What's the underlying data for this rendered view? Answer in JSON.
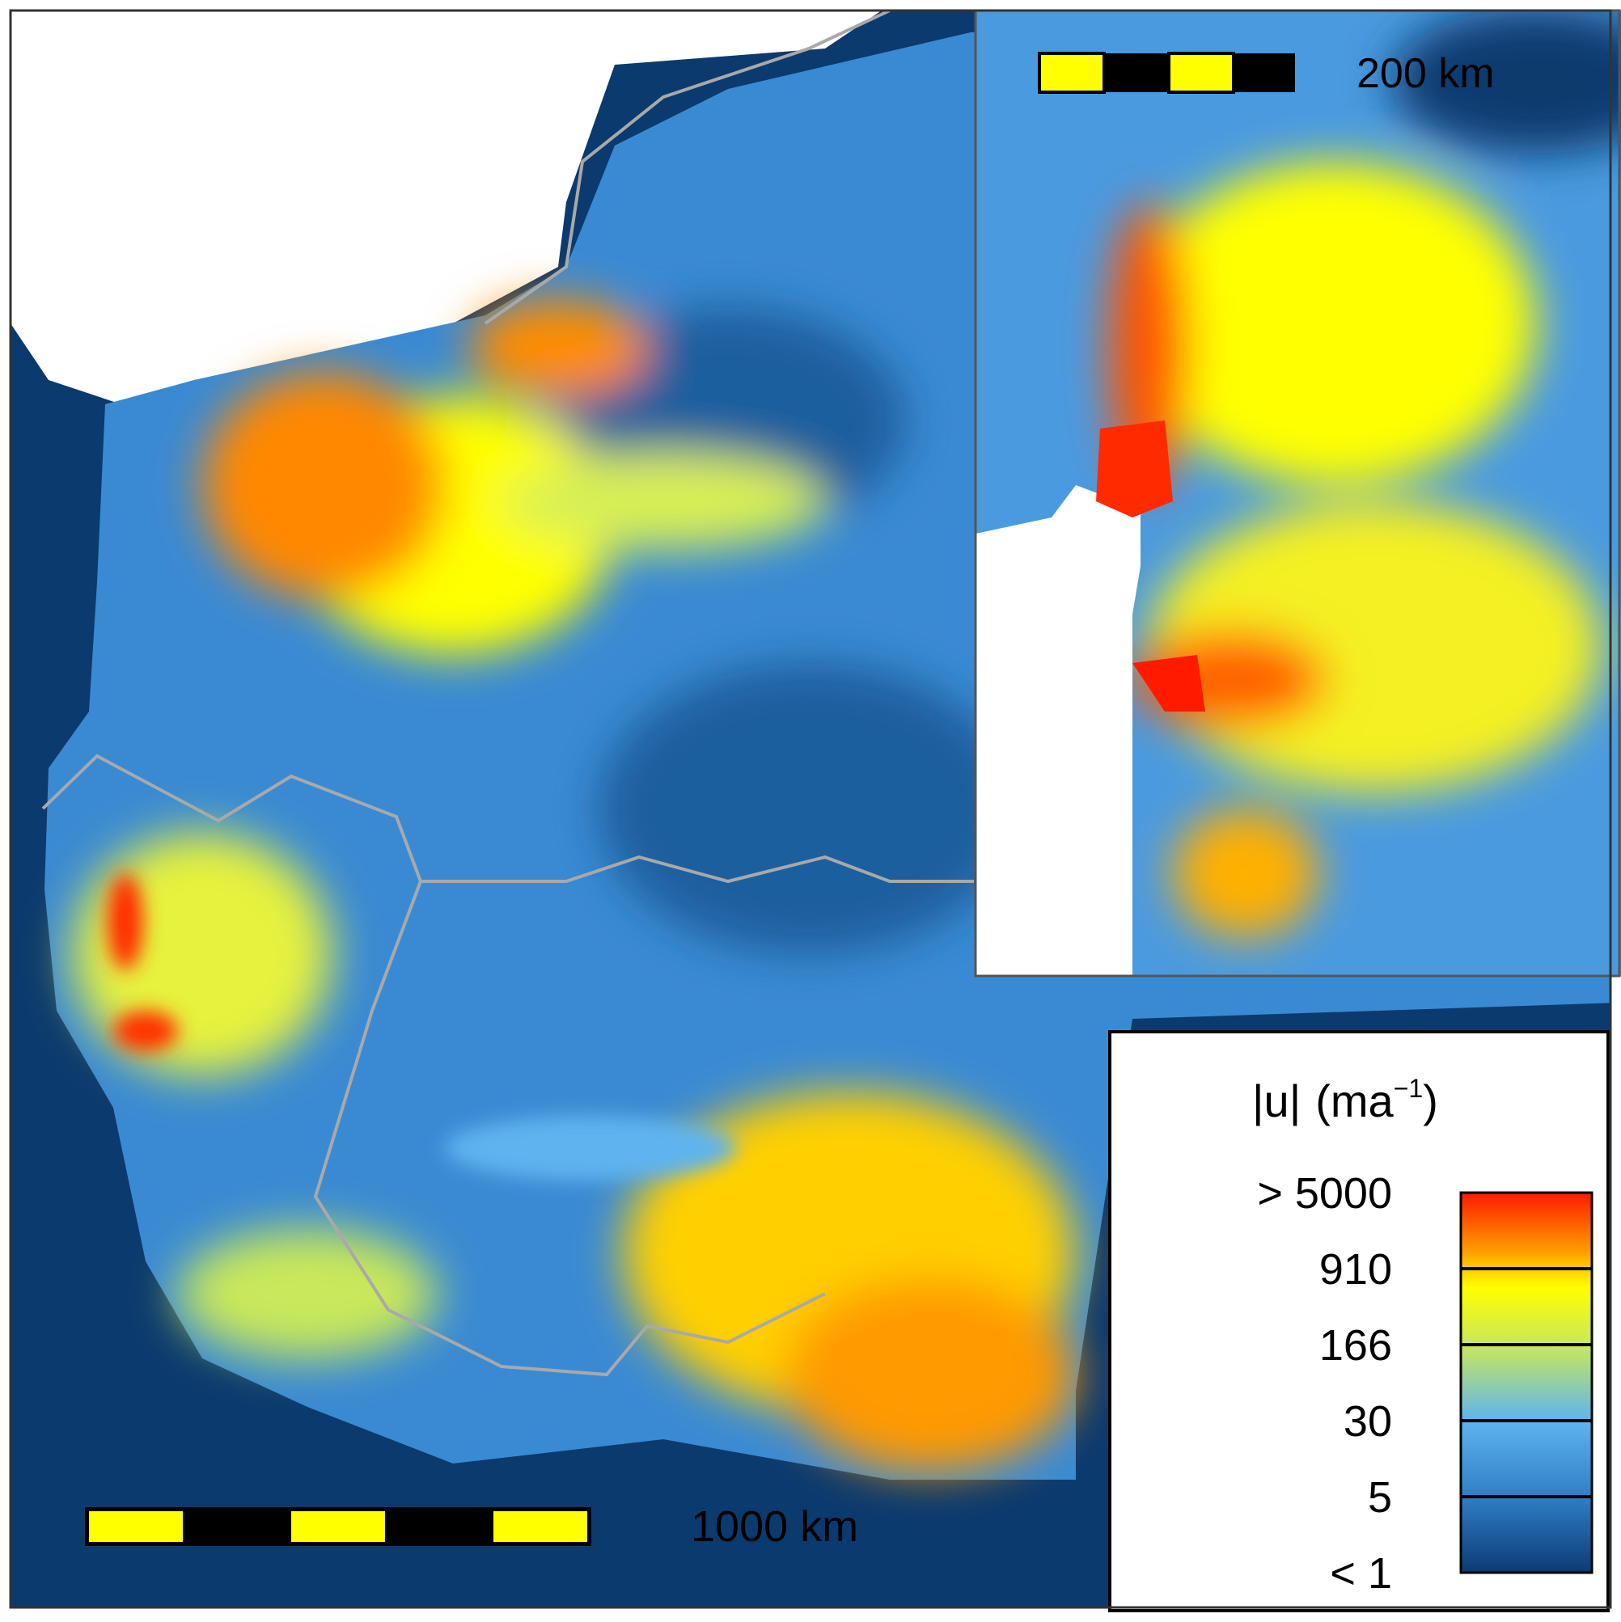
{
  "inset": {
    "scale_bar_label": "200 km"
  },
  "main": {
    "scale_bar_label": "1000 km"
  },
  "legend": {
    "title": "|u|",
    "unit": "(ma",
    "unit_exponent": "−1",
    "unit_close": ")",
    "labels": [
      "> 5000",
      "910",
      "166",
      "30",
      "5",
      "<  1"
    ]
  }
}
